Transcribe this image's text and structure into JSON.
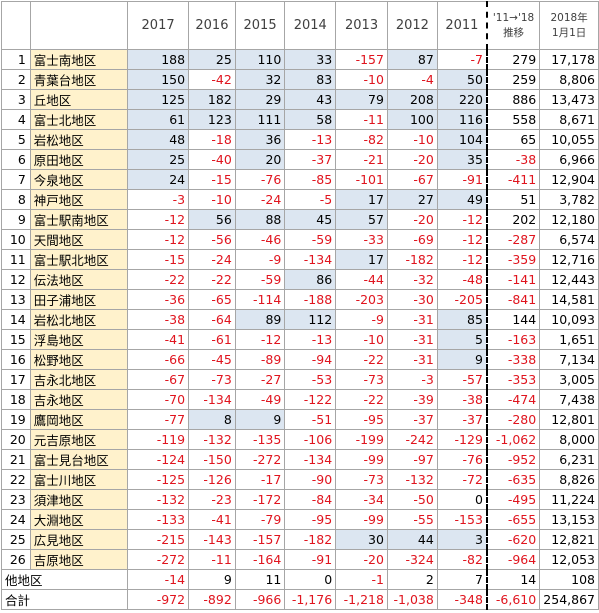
{
  "table": {
    "header": [
      "2017",
      "2016",
      "2015",
      "2014",
      "2013",
      "2012",
      "2011",
      "'11→'18\n推移",
      "2018年\n1月1日"
    ],
    "rows": [
      {
        "index": "1",
        "name": "富士南地区",
        "cells": [
          "188",
          "25",
          "110",
          "33",
          "-157",
          "87",
          "-7",
          "279",
          "17,178"
        ]
      },
      {
        "index": "2",
        "name": "青葉台地区",
        "cells": [
          "150",
          "-42",
          "32",
          "83",
          "-10",
          "-4",
          "50",
          "259",
          "8,806"
        ]
      },
      {
        "index": "3",
        "name": "丘地区",
        "cells": [
          "125",
          "182",
          "29",
          "43",
          "79",
          "208",
          "220",
          "886",
          "13,473"
        ]
      },
      {
        "index": "4",
        "name": "富士北地区",
        "cells": [
          "61",
          "123",
          "111",
          "58",
          "-11",
          "100",
          "116",
          "558",
          "8,671"
        ]
      },
      {
        "index": "5",
        "name": "岩松地区",
        "cells": [
          "48",
          "-18",
          "36",
          "-13",
          "-82",
          "-10",
          "104",
          "65",
          "10,055"
        ]
      },
      {
        "index": "6",
        "name": "原田地区",
        "cells": [
          "25",
          "-40",
          "20",
          "-37",
          "-21",
          "-20",
          "35",
          "-38",
          "6,966"
        ]
      },
      {
        "index": "7",
        "name": "今泉地区",
        "cells": [
          "24",
          "-15",
          "-76",
          "-85",
          "-101",
          "-67",
          "-91",
          "-411",
          "12,904"
        ]
      },
      {
        "index": "8",
        "name": "神戸地区",
        "cells": [
          "-3",
          "-10",
          "-24",
          "-5",
          "17",
          "27",
          "49",
          "51",
          "3,782"
        ]
      },
      {
        "index": "9",
        "name": "富士駅南地区",
        "cells": [
          "-12",
          "56",
          "88",
          "45",
          "57",
          "-20",
          "-12",
          "202",
          "12,180"
        ]
      },
      {
        "index": "10",
        "name": "天間地区",
        "cells": [
          "-12",
          "-56",
          "-46",
          "-59",
          "-33",
          "-69",
          "-12",
          "-287",
          "6,574"
        ]
      },
      {
        "index": "11",
        "name": "富士駅北地区",
        "cells": [
          "-15",
          "-24",
          "-9",
          "-134",
          "17",
          "-182",
          "-12",
          "-359",
          "12,716"
        ]
      },
      {
        "index": "12",
        "name": "伝法地区",
        "cells": [
          "-22",
          "-22",
          "-59",
          "86",
          "-44",
          "-32",
          "-48",
          "-141",
          "12,443"
        ]
      },
      {
        "index": "13",
        "name": "田子浦地区",
        "cells": [
          "-36",
          "-65",
          "-114",
          "-188",
          "-203",
          "-30",
          "-205",
          "-841",
          "14,581"
        ]
      },
      {
        "index": "14",
        "name": "岩松北地区",
        "cells": [
          "-38",
          "-64",
          "89",
          "112",
          "-9",
          "-31",
          "85",
          "144",
          "10,093"
        ]
      },
      {
        "index": "15",
        "name": "浮島地区",
        "cells": [
          "-41",
          "-61",
          "-12",
          "-13",
          "-10",
          "-31",
          "5",
          "-163",
          "1,651"
        ]
      },
      {
        "index": "16",
        "name": "松野地区",
        "cells": [
          "-66",
          "-45",
          "-89",
          "-94",
          "-22",
          "-31",
          "9",
          "-338",
          "7,134"
        ]
      },
      {
        "index": "17",
        "name": "吉永北地区",
        "cells": [
          "-67",
          "-73",
          "-27",
          "-53",
          "-73",
          "-3",
          "-57",
          "-353",
          "3,005"
        ]
      },
      {
        "index": "18",
        "name": "吉永地区",
        "cells": [
          "-70",
          "-134",
          "-49",
          "-122",
          "-22",
          "-39",
          "-38",
          "-474",
          "7,438"
        ]
      },
      {
        "index": "19",
        "name": "鷹岡地区",
        "cells": [
          "-77",
          "8",
          "9",
          "-51",
          "-95",
          "-37",
          "-37",
          "-280",
          "12,801"
        ]
      },
      {
        "index": "20",
        "name": "元吉原地区",
        "cells": [
          "-119",
          "-132",
          "-135",
          "-106",
          "-199",
          "-242",
          "-129",
          "-1,062",
          "8,000"
        ]
      },
      {
        "index": "21",
        "name": "富士見台地区",
        "cells": [
          "-124",
          "-150",
          "-272",
          "-134",
          "-99",
          "-97",
          "-76",
          "-952",
          "6,231"
        ]
      },
      {
        "index": "22",
        "name": "富士川地区",
        "cells": [
          "-125",
          "-126",
          "-17",
          "-90",
          "-73",
          "-132",
          "-72",
          "-635",
          "8,826"
        ]
      },
      {
        "index": "23",
        "name": "須津地区",
        "cells": [
          "-132",
          "-23",
          "-172",
          "-84",
          "-34",
          "-50",
          "0",
          "-495",
          "11,224"
        ]
      },
      {
        "index": "24",
        "name": "大淵地区",
        "cells": [
          "-133",
          "-41",
          "-79",
          "-95",
          "-99",
          "-55",
          "-153",
          "-655",
          "13,153"
        ]
      },
      {
        "index": "25",
        "name": "広見地区",
        "cells": [
          "-215",
          "-143",
          "-157",
          "-182",
          "30",
          "44",
          "3",
          "-620",
          "12,821"
        ]
      },
      {
        "index": "26",
        "name": "吉原地区",
        "cells": [
          "-272",
          "-11",
          "-164",
          "-91",
          "-20",
          "-324",
          "-82",
          "-964",
          "12,053"
        ]
      },
      {
        "name": "他地区",
        "cells": [
          "-14",
          "9",
          "11",
          "0",
          "-1",
          "2",
          "7",
          "14",
          "108"
        ]
      },
      {
        "name": "合計",
        "cells": [
          "-972",
          "-892",
          "-966",
          "-1,176",
          "-1,218",
          "-1,038",
          "-348",
          "-6,610",
          "254,867"
        ]
      }
    ]
  }
}
